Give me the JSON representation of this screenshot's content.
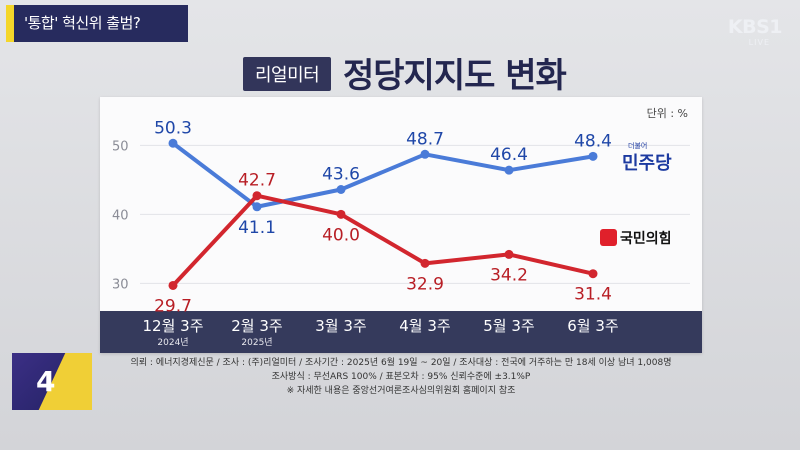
{
  "topic": "'통합' 혁신위 출범?",
  "broadcaster": {
    "logo": "KBS1",
    "sub": "LIVE"
  },
  "header": {
    "badge": "리얼미터",
    "title": "정당지지도 변화"
  },
  "unit_label": "단위 : %",
  "legend": {
    "minjoo": "민주당",
    "minjoo_small": "더불어",
    "ppp": "국민의힘"
  },
  "chart_data": {
    "type": "line",
    "categories": [
      "12월 3주",
      "2월 3주",
      "3월 3주",
      "4월 3주",
      "5월 3주",
      "6월 3주"
    ],
    "category_sublabels": [
      "2024년",
      "2025년",
      "",
      "",
      "",
      ""
    ],
    "series": [
      {
        "name": "민주당",
        "values": [
          50.3,
          41.1,
          43.6,
          48.7,
          46.4,
          48.4
        ],
        "color": "#4a7bd8",
        "label_color": "#1f47a8"
      },
      {
        "name": "국민의힘",
        "values": [
          29.7,
          42.7,
          40.0,
          32.9,
          34.2,
          31.4
        ],
        "color": "#d2262e",
        "label_color": "#b81e25"
      }
    ],
    "value_labels": {
      "민주당": [
        "50.3",
        "41.1",
        "43.6",
        "48.7",
        "46.4",
        "48.4"
      ],
      "국민의힘": [
        "29.7",
        "42.7",
        "40.0",
        "32.9",
        "34.2",
        "31.4"
      ]
    },
    "y_ticks": [
      30,
      40,
      50
    ],
    "ylim": [
      26,
      57
    ],
    "grid": true
  },
  "footnotes": [
    "의뢰 : 에너지경제신문 / 조사 : (주)리얼미터 / 조사기간 : 2025년 6월 19일 ~ 20일 / 조사대상 : 전국에 거주하는 만 18세 이상 남녀 1,008명",
    "조사방식 : 무선ARS 100% / 표본오차 : 95% 신뢰수준에 ±3.1%P",
    "※ 자세한 내용은 중앙선거여론조사심의위원회 홈페이지 참조"
  ],
  "corner_icon": {
    "number": "4"
  }
}
